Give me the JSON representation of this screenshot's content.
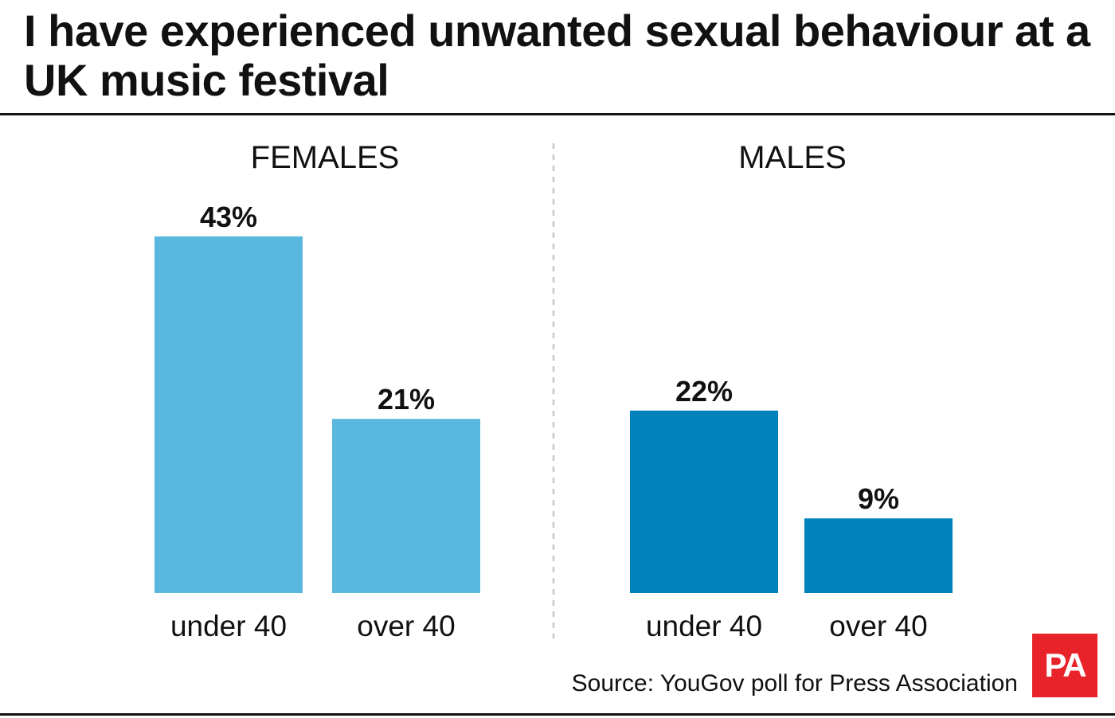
{
  "header": {
    "title": "I have experienced unwanted sexual behaviour at a UK music festival"
  },
  "footer": {
    "source": "Source: YouGov poll for Press Association",
    "logo_text": "PA"
  },
  "colors": {
    "females": "#5ab7de",
    "males": "#0083bd",
    "divider": "#c8c8c8",
    "logo": "#e8232a"
  },
  "chart_data": [
    {
      "type": "bar",
      "title": "FEMALES",
      "categories": [
        "under 40",
        "over 40"
      ],
      "values": [
        43,
        21
      ],
      "value_labels": [
        "43%",
        "21%"
      ],
      "unit": "%",
      "ylim": [
        0,
        43
      ],
      "grid": false
    },
    {
      "type": "bar",
      "title": "MALES",
      "categories": [
        "under 40",
        "over 40"
      ],
      "values": [
        22,
        9
      ],
      "value_labels": [
        "22%",
        "9%"
      ],
      "unit": "%",
      "ylim": [
        0,
        43
      ],
      "grid": false
    }
  ]
}
